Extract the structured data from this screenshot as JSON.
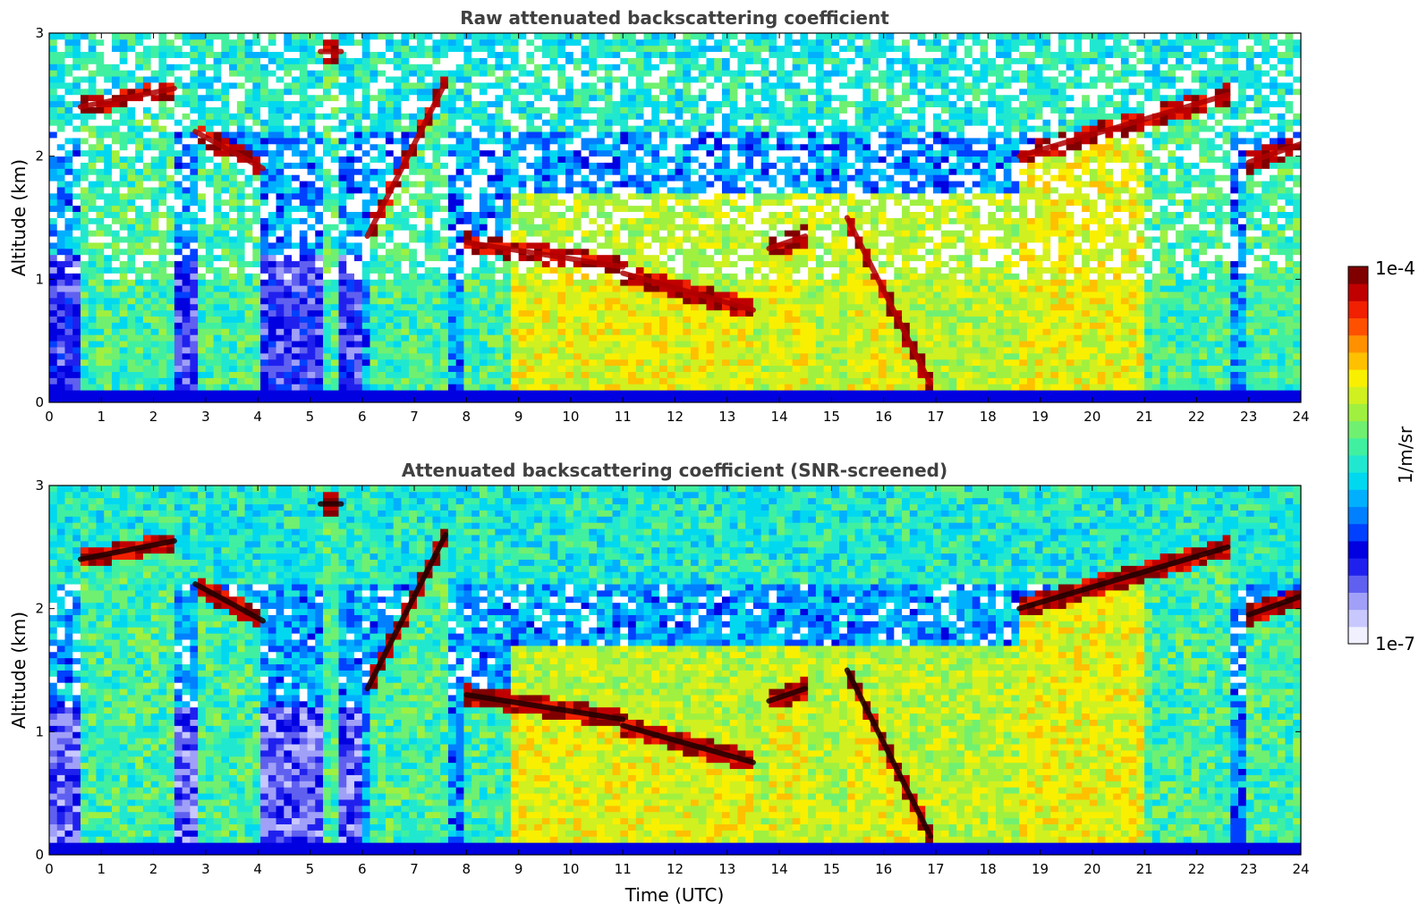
{
  "chart_data": [
    {
      "type": "heatmap",
      "title": "Raw attenuated backscattering coefficient",
      "xlabel": "",
      "ylabel": "Altitude (km)",
      "xlim": [
        0,
        24
      ],
      "ylim": [
        0,
        3
      ],
      "x_ticks": [
        "0",
        "1",
        "2",
        "3",
        "4",
        "5",
        "6",
        "7",
        "8",
        "9",
        "10",
        "11",
        "12",
        "13",
        "14",
        "15",
        "16",
        "17",
        "18",
        "19",
        "20",
        "21",
        "22",
        "23",
        "24"
      ],
      "y_ticks": [
        "0",
        "1",
        "2",
        "3"
      ],
      "grid": false,
      "color_scale": "log",
      "cloud_layers": [
        {
          "t_start": 0.6,
          "t_end": 2.4,
          "alt_start_km": 2.4,
          "alt_end_km": 2.55
        },
        {
          "t_start": 2.8,
          "t_end": 4.1,
          "alt_start_km": 2.2,
          "alt_end_km": 1.9
        },
        {
          "t_start": 5.2,
          "t_end": 5.6,
          "alt_start_km": 2.85,
          "alt_end_km": 2.85
        },
        {
          "t_start": 6.1,
          "t_end": 7.6,
          "alt_start_km": 1.35,
          "alt_end_km": 2.6
        },
        {
          "t_start": 8.0,
          "t_end": 11.0,
          "alt_start_km": 1.3,
          "alt_end_km": 1.1
        },
        {
          "t_start": 11.0,
          "t_end": 13.5,
          "alt_start_km": 1.05,
          "alt_end_km": 0.75
        },
        {
          "t_start": 13.8,
          "t_end": 14.5,
          "alt_start_km": 1.25,
          "alt_end_km": 1.35
        },
        {
          "t_start": 15.3,
          "t_end": 16.9,
          "alt_start_km": 1.5,
          "alt_end_km": 0.15
        },
        {
          "t_start": 18.6,
          "t_end": 22.6,
          "alt_start_km": 2.0,
          "alt_end_km": 2.5
        },
        {
          "t_start": 23.0,
          "t_end": 24.0,
          "alt_start_km": 1.95,
          "alt_end_km": 2.1
        }
      ]
    },
    {
      "type": "heatmap",
      "title": "Attenuated backscattering coefficient (SNR-screened)",
      "xlabel": "Time (UTC)",
      "ylabel": "Altitude (km)",
      "xlim": [
        0,
        24
      ],
      "ylim": [
        0,
        3
      ],
      "x_ticks": [
        "0",
        "1",
        "2",
        "3",
        "4",
        "5",
        "6",
        "7",
        "8",
        "9",
        "10",
        "11",
        "12",
        "13",
        "14",
        "15",
        "16",
        "17",
        "18",
        "19",
        "20",
        "21",
        "22",
        "23",
        "24"
      ],
      "y_ticks": [
        "0",
        "1",
        "2",
        "3"
      ],
      "grid": false,
      "color_scale": "log",
      "cloud_layers": [
        {
          "t_start": 0.6,
          "t_end": 2.4,
          "alt_start_km": 2.4,
          "alt_end_km": 2.55
        },
        {
          "t_start": 2.8,
          "t_end": 4.1,
          "alt_start_km": 2.2,
          "alt_end_km": 1.9
        },
        {
          "t_start": 5.2,
          "t_end": 5.6,
          "alt_start_km": 2.85,
          "alt_end_km": 2.85
        },
        {
          "t_start": 6.1,
          "t_end": 7.6,
          "alt_start_km": 1.35,
          "alt_end_km": 2.6
        },
        {
          "t_start": 8.0,
          "t_end": 11.0,
          "alt_start_km": 1.3,
          "alt_end_km": 1.1
        },
        {
          "t_start": 11.0,
          "t_end": 13.5,
          "alt_start_km": 1.05,
          "alt_end_km": 0.75
        },
        {
          "t_start": 13.8,
          "t_end": 14.5,
          "alt_start_km": 1.25,
          "alt_end_km": 1.35
        },
        {
          "t_start": 15.3,
          "t_end": 16.9,
          "alt_start_km": 1.5,
          "alt_end_km": 0.15
        },
        {
          "t_start": 18.6,
          "t_end": 22.6,
          "alt_start_km": 2.0,
          "alt_end_km": 2.5
        },
        {
          "t_start": 23.0,
          "t_end": 24.0,
          "alt_start_km": 1.95,
          "alt_end_km": 2.1
        }
      ]
    }
  ],
  "colorbar": {
    "label": "1/m/sr",
    "max_label": "1e-4",
    "min_label": "1e-7",
    "colors": [
      "#f0f0ff",
      "#c8c8ff",
      "#a0a0f8",
      "#6060f0",
      "#2020ee",
      "#0000e0",
      "#0040ff",
      "#0080ff",
      "#00b0ff",
      "#00d8f0",
      "#20e8d0",
      "#40f0a0",
      "#70f070",
      "#a0f040",
      "#d0f020",
      "#f8f000",
      "#ffc000",
      "#ff9000",
      "#ff5000",
      "#f02000",
      "#c00000",
      "#800000"
    ]
  }
}
